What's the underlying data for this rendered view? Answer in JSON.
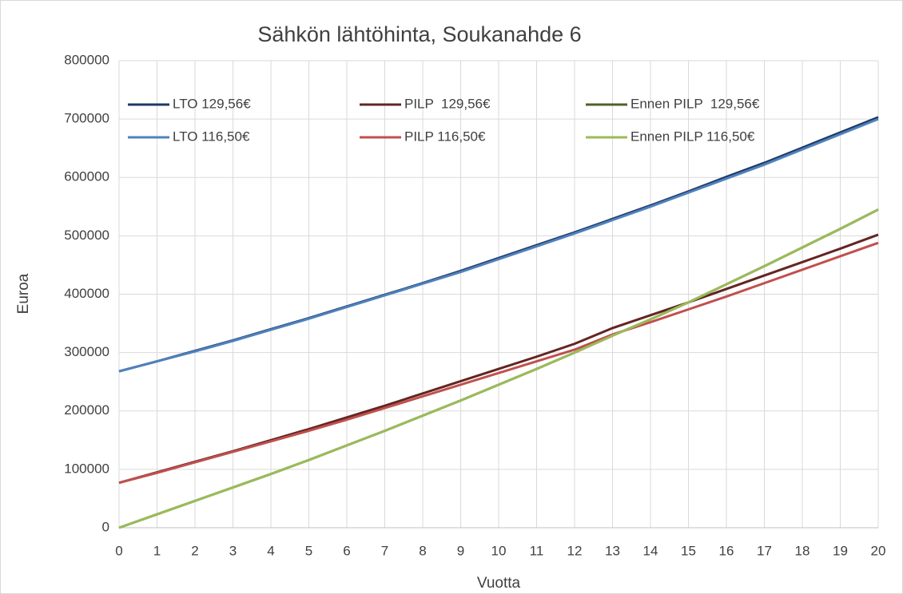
{
  "chart_data": {
    "type": "line",
    "title": "Sähkön lähtöhinta, Soukanahde 6",
    "x_label": "Vuotta",
    "y_label": "Euroa",
    "x": [
      0,
      1,
      2,
      3,
      4,
      5,
      6,
      7,
      8,
      9,
      10,
      11,
      12,
      13,
      14,
      15,
      16,
      17,
      18,
      19,
      20
    ],
    "xlim": [
      0,
      20
    ],
    "xticks": [
      0,
      1,
      2,
      3,
      4,
      5,
      6,
      7,
      8,
      9,
      10,
      11,
      12,
      13,
      14,
      15,
      16,
      17,
      18,
      19,
      20
    ],
    "ylim": [
      0,
      800000
    ],
    "yticks": [
      0,
      100000,
      200000,
      300000,
      400000,
      500000,
      600000,
      700000,
      800000
    ],
    "grid": true,
    "series": [
      {
        "name": "LTO 129,56€",
        "color": "#1f3864",
        "values": [
          268000,
          285000,
          303000,
          321000,
          340000,
          359000,
          379000,
          399000,
          419000,
          440000,
          462000,
          484000,
          506000,
          529000,
          552000,
          576000,
          601000,
          625000,
          651000,
          677000,
          703000
        ]
      },
      {
        "name": "PILP  129,56€",
        "color": "#632523",
        "values": [
          77000,
          95000,
          113000,
          131000,
          150000,
          169000,
          189000,
          209000,
          230000,
          251000,
          272000,
          293000,
          315000,
          342000,
          364000,
          386000,
          409000,
          432000,
          455000,
          478000,
          502000
        ]
      },
      {
        "name": "Ennen PILP  129,56€",
        "color": "#4f6228",
        "values": [
          0,
          23000,
          46000,
          69000,
          92000,
          116000,
          141000,
          166000,
          192000,
          218000,
          245000,
          272000,
          300000,
          329000,
          357000,
          386000,
          417000,
          448000,
          480000,
          512000,
          545000
        ]
      },
      {
        "name": "LTO 116,50€",
        "color": "#4f81bd",
        "values": [
          268000,
          285000,
          302000,
          320000,
          339000,
          358000,
          378000,
          398000,
          418000,
          438000,
          460000,
          482000,
          504000,
          527000,
          550000,
          574000,
          598000,
          622000,
          648000,
          674000,
          700000
        ]
      },
      {
        "name": "PILP 116,50€",
        "color": "#c0504d",
        "values": [
          77000,
          94000,
          112000,
          130000,
          148000,
          166000,
          185000,
          205000,
          225000,
          245000,
          265000,
          285000,
          305000,
          331000,
          352000,
          374000,
          396000,
          419000,
          442000,
          465000,
          488000
        ]
      },
      {
        "name": "Ennen PILP 116,50€",
        "color": "#9bbb59",
        "values": [
          0,
          23000,
          46000,
          69000,
          92000,
          116000,
          141000,
          166000,
          192000,
          218000,
          245000,
          272000,
          300000,
          329000,
          357000,
          386000,
          417000,
          448000,
          480000,
          512000,
          545000
        ]
      }
    ]
  }
}
